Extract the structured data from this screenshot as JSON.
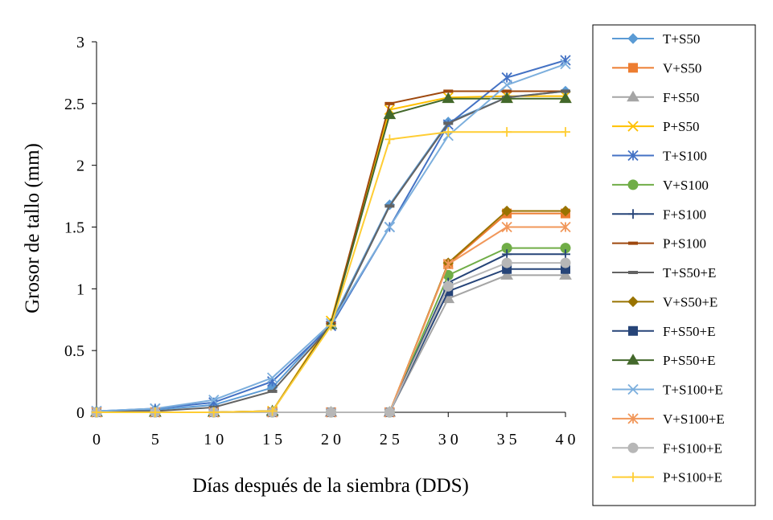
{
  "chart_data": {
    "type": "line",
    "title": "",
    "xlabel": "Días después de la siembra (DDS)",
    "ylabel": "Grosor de tallo (mm)",
    "x": [
      0,
      5,
      10,
      15,
      20,
      25,
      30,
      35,
      40
    ],
    "xlim": [
      0,
      40
    ],
    "ylim": [
      0,
      3
    ],
    "xticks": [
      "0",
      "5",
      "1 0",
      "1 5",
      "2 0",
      "2 5",
      "3 0",
      "3 5",
      "4 0"
    ],
    "yticks": [
      "0",
      "0.5",
      "1",
      "1.5",
      "2",
      "2.5",
      "3"
    ],
    "grid": false,
    "legend_position": "right",
    "series": [
      {
        "name": "T+S50",
        "color": "#5B9BD5",
        "marker": "diamond",
        "values": [
          0.01,
          0.02,
          0.06,
          0.2,
          0.72,
          1.68,
          2.35,
          2.55,
          2.6
        ]
      },
      {
        "name": "V+S50",
        "color": "#ED7D31",
        "marker": "square",
        "values": [
          0,
          0,
          0,
          0,
          0,
          0,
          1.2,
          1.61,
          1.61
        ]
      },
      {
        "name": "F+S50",
        "color": "#A5A5A5",
        "marker": "triangle",
        "values": [
          0,
          0,
          0,
          0,
          0,
          0,
          0.92,
          1.11,
          1.11
        ]
      },
      {
        "name": "P+S50",
        "color": "#FFC000",
        "marker": "x",
        "values": [
          0,
          0,
          0,
          0.01,
          0.74,
          2.45,
          2.55,
          2.56,
          2.56
        ]
      },
      {
        "name": "T+S100",
        "color": "#4472C4",
        "marker": "star",
        "values": [
          0.01,
          0.03,
          0.08,
          0.25,
          0.7,
          1.5,
          2.33,
          2.71,
          2.85
        ]
      },
      {
        "name": "V+S100",
        "color": "#70AD47",
        "marker": "circle",
        "values": [
          0,
          0,
          0,
          0,
          0,
          0,
          1.11,
          1.33,
          1.33
        ]
      },
      {
        "name": "F+S100",
        "color": "#264478",
        "marker": "plus",
        "values": [
          0,
          0,
          0,
          0,
          0,
          0,
          1.05,
          1.28,
          1.28
        ]
      },
      {
        "name": "P+S100",
        "color": "#9E480E",
        "marker": "dash",
        "values": [
          0,
          0,
          0,
          0.01,
          0.72,
          2.5,
          2.6,
          2.6,
          2.6
        ]
      },
      {
        "name": "T+S50+E",
        "color": "#636363",
        "marker": "dash",
        "values": [
          0.01,
          0.01,
          0.04,
          0.17,
          0.7,
          1.67,
          2.34,
          2.55,
          2.6
        ]
      },
      {
        "name": "V+S50+E",
        "color": "#997300",
        "marker": "diamond",
        "values": [
          0,
          0,
          0,
          0,
          0,
          0,
          1.21,
          1.63,
          1.63
        ]
      },
      {
        "name": "F+S50+E",
        "color": "#264478",
        "marker": "square",
        "values": [
          0,
          0,
          0,
          0,
          0,
          0,
          0.98,
          1.16,
          1.16
        ]
      },
      {
        "name": "P+S50+E",
        "color": "#43682B",
        "marker": "triangle",
        "values": [
          0,
          0,
          0,
          0.01,
          0.71,
          2.41,
          2.54,
          2.54,
          2.54
        ]
      },
      {
        "name": "T+S100+E",
        "color": "#7CAFDD",
        "marker": "x",
        "values": [
          0.01,
          0.03,
          0.1,
          0.28,
          0.72,
          1.5,
          2.24,
          2.65,
          2.82
        ]
      },
      {
        "name": "V+S100+E",
        "color": "#F1975A",
        "marker": "star",
        "values": [
          0,
          0,
          0,
          0,
          0,
          0,
          1.2,
          1.5,
          1.5
        ]
      },
      {
        "name": "F+S100+E",
        "color": "#B7B7B7",
        "marker": "circle",
        "values": [
          0,
          0,
          0,
          0,
          0,
          0,
          1.02,
          1.21,
          1.21
        ]
      },
      {
        "name": "P+S100+E",
        "color": "#FFCD33",
        "marker": "plus",
        "values": [
          0,
          0,
          0,
          0.01,
          0.7,
          2.21,
          2.27,
          2.27,
          2.27
        ]
      }
    ]
  }
}
